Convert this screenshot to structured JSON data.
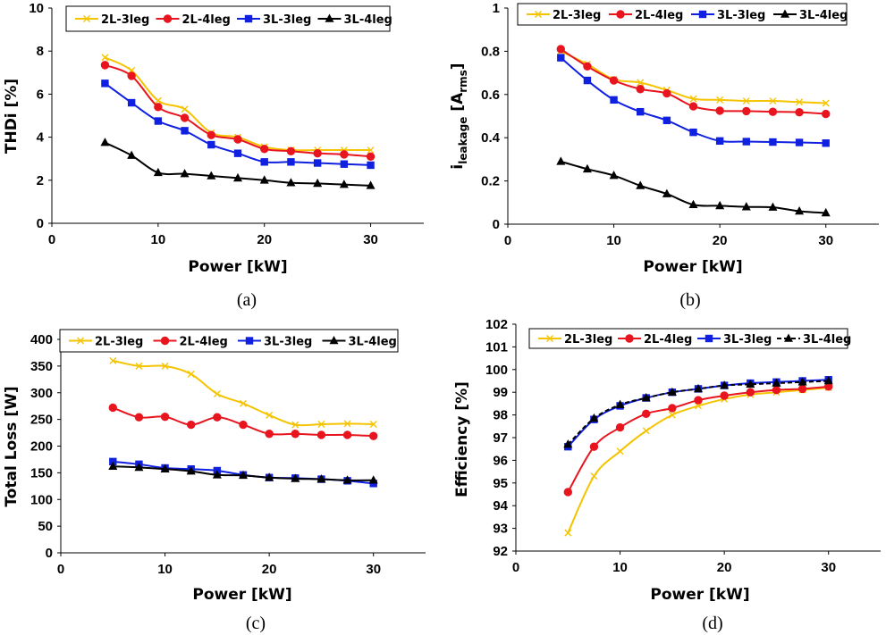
{
  "colors": {
    "2L-3leg": "#f5c400",
    "2L-4leg": "#e8141e",
    "3L-3leg": "#1020e0",
    "3L-4leg": "#000000"
  },
  "markers": {
    "2L-3leg": "cross",
    "2L-4leg": "circle",
    "3L-3leg": "square",
    "3L-4leg": "triangle"
  },
  "chart_data": [
    {
      "type": "line",
      "caption": "(a)",
      "xlabel": "Power [kW]",
      "ylabel": "THDi [%]",
      "xlim": [
        0,
        35
      ],
      "ylim": [
        0,
        10
      ],
      "xticks": [
        0,
        10,
        20,
        30
      ],
      "xtick_labels": [
        "0",
        "10",
        "20",
        "30"
      ],
      "yticks": [
        0,
        2,
        4,
        6,
        8,
        10
      ],
      "ytick_labels": [
        "0",
        "2",
        "4",
        "6",
        "8",
        "10"
      ],
      "x": [
        5,
        7.5,
        10,
        12.5,
        15,
        17.5,
        20,
        22.5,
        25,
        27.5,
        30
      ],
      "legend": [
        "2L-3leg",
        "2L-4leg",
        "3L-3leg",
        "3L-4leg"
      ],
      "series": [
        {
          "name": "2L-3leg",
          "values": [
            7.7,
            7.1,
            5.7,
            5.3,
            4.2,
            4.0,
            3.55,
            3.4,
            3.4,
            3.4,
            3.4
          ]
        },
        {
          "name": "2L-4leg",
          "values": [
            7.35,
            6.85,
            5.4,
            4.9,
            4.1,
            3.9,
            3.45,
            3.35,
            3.25,
            3.2,
            3.1
          ]
        },
        {
          "name": "3L-3leg",
          "values": [
            6.5,
            5.6,
            4.75,
            4.3,
            3.65,
            3.25,
            2.85,
            2.85,
            2.8,
            2.75,
            2.7
          ]
        },
        {
          "name": "3L-4leg",
          "values": [
            3.75,
            3.15,
            2.35,
            2.3,
            2.2,
            2.1,
            2.0,
            1.88,
            1.85,
            1.8,
            1.75
          ]
        }
      ]
    },
    {
      "type": "line",
      "caption": "(b)",
      "xlabel": "Power [kW]",
      "ylabel_main": "i",
      "ylabel_sub": "leakage",
      "ylabel_bracket_open": " [A",
      "ylabel_unit_sub": "rms",
      "ylabel_bracket_close": "]",
      "xlim": [
        0,
        35
      ],
      "ylim": [
        0,
        1
      ],
      "xticks": [
        0,
        10,
        20,
        30
      ],
      "xtick_labels": [
        "0",
        "10",
        "20",
        "30"
      ],
      "yticks": [
        0,
        0.2,
        0.4,
        0.6,
        0.8,
        1
      ],
      "ytick_labels": [
        "0",
        "0.2",
        "0.4",
        "0.6",
        "0.8",
        "1"
      ],
      "x": [
        5,
        7.5,
        10,
        12.5,
        15,
        17.5,
        20,
        22.5,
        25,
        27.5,
        30
      ],
      "legend": [
        "2L-3leg",
        "2L-4leg",
        "3L-3leg",
        "3L-4leg"
      ],
      "series": [
        {
          "name": "2L-3leg",
          "values": [
            0.8,
            0.74,
            0.67,
            0.655,
            0.62,
            0.58,
            0.575,
            0.57,
            0.57,
            0.565,
            0.56
          ]
        },
        {
          "name": "2L-4leg",
          "values": [
            0.81,
            0.73,
            0.665,
            0.625,
            0.605,
            0.545,
            0.525,
            0.523,
            0.52,
            0.518,
            0.51
          ]
        },
        {
          "name": "3L-3leg",
          "values": [
            0.77,
            0.665,
            0.575,
            0.52,
            0.48,
            0.425,
            0.385,
            0.382,
            0.38,
            0.378,
            0.375
          ]
        },
        {
          "name": "3L-4leg",
          "values": [
            0.29,
            0.255,
            0.225,
            0.178,
            0.14,
            0.09,
            0.085,
            0.08,
            0.078,
            0.06,
            0.052
          ]
        }
      ]
    },
    {
      "type": "line",
      "caption": "(c)",
      "xlabel": "Power [kW]",
      "ylabel": "Total Loss [W]",
      "xlim": [
        0,
        35
      ],
      "ylim": [
        0,
        400
      ],
      "xticks": [
        0,
        10,
        20,
        30
      ],
      "xtick_labels": [
        "0",
        "10",
        "20",
        "30"
      ],
      "yticks": [
        0,
        50,
        100,
        150,
        200,
        250,
        300,
        350,
        400
      ],
      "ytick_labels": [
        "0",
        "50",
        "100",
        "150",
        "200",
        "250",
        "300",
        "350",
        "400"
      ],
      "x": [
        5,
        7.5,
        10,
        12.5,
        15,
        17.5,
        20,
        22.5,
        25,
        27.5,
        30
      ],
      "legend": [
        "2L-3leg",
        "2L-4leg",
        "3L-3leg",
        "3L-4leg"
      ],
      "series": [
        {
          "name": "2L-3leg",
          "values": [
            360,
            350,
            350,
            335,
            298,
            280,
            258,
            240,
            241,
            242,
            241
          ]
        },
        {
          "name": "2L-4leg",
          "values": [
            272,
            254,
            255,
            240,
            254,
            240,
            223,
            223,
            221,
            221,
            219
          ]
        },
        {
          "name": "3L-3leg",
          "values": [
            171,
            166,
            159,
            157,
            154,
            146,
            141,
            140,
            138,
            135,
            130
          ]
        },
        {
          "name": "3L-4leg",
          "values": [
            162,
            160,
            157,
            153,
            146,
            145,
            141,
            139,
            138,
            136,
            136
          ]
        }
      ]
    },
    {
      "type": "line",
      "caption": "(d)",
      "xlabel": "Power [kW]",
      "ylabel": "Efficiency  [%]",
      "xlim": [
        0,
        35
      ],
      "ylim": [
        92,
        102
      ],
      "xticks": [
        0,
        10,
        20,
        30
      ],
      "xtick_labels": [
        "0",
        "10",
        "20",
        "30"
      ],
      "yticks": [
        92,
        93,
        94,
        95,
        96,
        97,
        98,
        99,
        100,
        101,
        102
      ],
      "ytick_labels": [
        "92",
        "93",
        "94",
        "95",
        "96",
        "97",
        "98",
        "99",
        "100",
        "101",
        "102"
      ],
      "x": [
        5,
        7.5,
        10,
        12.5,
        15,
        17.5,
        20,
        22.5,
        25,
        27.5,
        30
      ],
      "legend": [
        "2L-3leg",
        "2L-4leg",
        "3L-3leg",
        "3L-4leg"
      ],
      "dashed_series": [
        "3L-4leg"
      ],
      "series": [
        {
          "name": "2L-3leg",
          "values": [
            92.8,
            95.3,
            96.4,
            97.3,
            98.0,
            98.4,
            98.7,
            98.9,
            99.0,
            99.1,
            99.2
          ]
        },
        {
          "name": "2L-4leg",
          "values": [
            94.6,
            96.6,
            97.45,
            98.05,
            98.3,
            98.65,
            98.85,
            99.0,
            99.1,
            99.15,
            99.25
          ]
        },
        {
          "name": "3L-3leg",
          "values": [
            96.6,
            97.8,
            98.4,
            98.75,
            99.0,
            99.15,
            99.3,
            99.4,
            99.45,
            99.5,
            99.55
          ]
        },
        {
          "name": "3L-4leg",
          "values": [
            96.7,
            97.85,
            98.45,
            98.75,
            99.0,
            99.15,
            99.3,
            99.35,
            99.4,
            99.45,
            99.5
          ]
        }
      ]
    }
  ]
}
